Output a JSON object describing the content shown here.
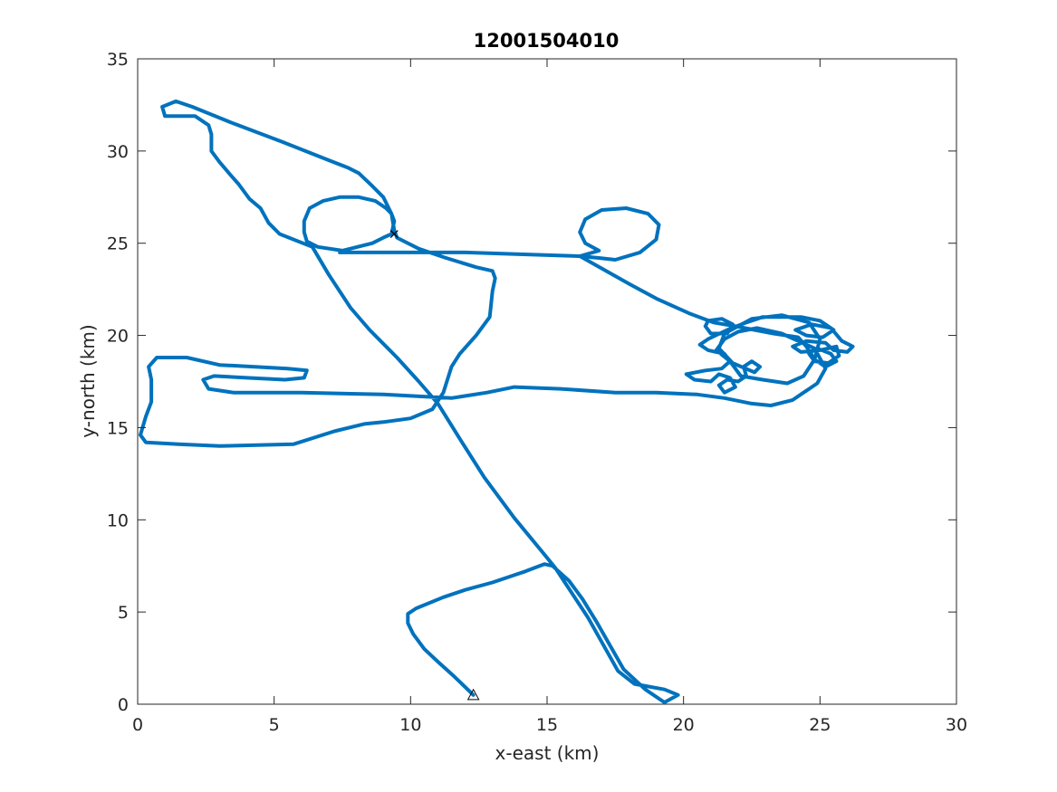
{
  "chart_data": {
    "type": "line",
    "title": "12001504010",
    "xlabel": "x-east (km)",
    "ylabel": "y-north (km)",
    "xlim": [
      0,
      30
    ],
    "ylim": [
      0,
      35
    ],
    "xticks": [
      0,
      5,
      10,
      15,
      20,
      25,
      30
    ],
    "yticks": [
      0,
      5,
      10,
      15,
      20,
      25,
      30,
      35
    ],
    "grid": false,
    "colors": {
      "track": "#0072BD",
      "axes": "#262626"
    },
    "series": [
      {
        "points": [
          [
            12.3,
            0.5
          ],
          [
            11.6,
            1.5
          ],
          [
            11.0,
            2.3
          ],
          [
            10.5,
            3.0
          ],
          [
            10.1,
            3.8
          ],
          [
            9.9,
            4.4
          ],
          [
            9.9,
            4.9
          ],
          [
            10.2,
            5.2
          ],
          [
            11.2,
            5.8
          ],
          [
            12.0,
            6.2
          ],
          [
            13.0,
            6.6
          ],
          [
            14.2,
            7.2
          ],
          [
            14.9,
            7.6
          ],
          [
            15.2,
            7.5
          ],
          [
            15.8,
            6.7
          ],
          [
            16.3,
            5.7
          ],
          [
            16.8,
            4.5
          ],
          [
            17.3,
            3.2
          ],
          [
            17.8,
            1.9
          ],
          [
            18.6,
            0.8
          ],
          [
            19.3,
            0.1
          ],
          [
            19.8,
            0.5
          ],
          [
            19.3,
            0.8
          ],
          [
            18.2,
            1.1
          ],
          [
            17.6,
            1.8
          ],
          [
            16.5,
            4.7
          ],
          [
            15.3,
            7.4
          ],
          [
            14.8,
            8.3
          ],
          [
            13.8,
            10.1
          ],
          [
            12.7,
            12.3
          ],
          [
            11.8,
            14.4
          ],
          [
            11.0,
            16.3
          ],
          [
            10.3,
            17.5
          ],
          [
            9.5,
            18.8
          ],
          [
            8.5,
            20.3
          ],
          [
            7.8,
            21.5
          ],
          [
            7.0,
            23.3
          ],
          [
            6.4,
            24.8
          ],
          [
            5.2,
            25.5
          ],
          [
            4.8,
            26.1
          ],
          [
            4.5,
            26.9
          ],
          [
            4.1,
            27.4
          ],
          [
            3.7,
            28.2
          ],
          [
            3.4,
            28.7
          ],
          [
            3.0,
            29.4
          ],
          [
            2.7,
            30.0
          ],
          [
            2.7,
            30.9
          ],
          [
            2.6,
            31.4
          ],
          [
            2.1,
            31.9
          ],
          [
            1.5,
            31.9
          ],
          [
            1.0,
            31.9
          ],
          [
            0.9,
            32.4
          ],
          [
            1.4,
            32.7
          ],
          [
            2.0,
            32.4
          ],
          [
            3.5,
            31.5
          ],
          [
            5.3,
            30.5
          ],
          [
            7.0,
            29.5
          ],
          [
            7.7,
            29.1
          ],
          [
            8.1,
            28.8
          ],
          [
            8.6,
            28.1
          ],
          [
            9.0,
            27.5
          ],
          [
            9.3,
            26.6
          ],
          [
            9.4,
            26.2
          ],
          [
            9.3,
            25.5
          ],
          [
            9.0,
            25.3
          ],
          [
            8.6,
            25.0
          ],
          [
            7.5,
            24.6
          ],
          [
            6.6,
            24.8
          ],
          [
            6.2,
            25.1
          ],
          [
            6.1,
            25.6
          ],
          [
            6.1,
            26.2
          ],
          [
            6.3,
            26.9
          ],
          [
            6.8,
            27.3
          ],
          [
            7.4,
            27.5
          ],
          [
            8.1,
            27.5
          ],
          [
            8.7,
            27.3
          ],
          [
            9.1,
            26.9
          ],
          [
            9.3,
            26.6
          ],
          [
            9.4,
            25.7
          ],
          [
            9.5,
            25.3
          ],
          [
            10.3,
            24.7
          ],
          [
            11.3,
            24.2
          ],
          [
            12.4,
            23.7
          ],
          [
            13.0,
            23.5
          ],
          [
            13.1,
            23.1
          ],
          [
            13.0,
            22.4
          ],
          [
            12.9,
            21.0
          ],
          [
            12.4,
            20.0
          ],
          [
            11.8,
            19.0
          ],
          [
            11.5,
            18.3
          ],
          [
            11.2,
            16.9
          ],
          [
            10.8,
            16.0
          ],
          [
            10.0,
            15.5
          ],
          [
            9.0,
            15.3
          ],
          [
            8.3,
            15.2
          ],
          [
            7.2,
            14.8
          ],
          [
            5.7,
            14.1
          ],
          [
            3.0,
            14.0
          ],
          [
            1.5,
            14.1
          ],
          [
            0.3,
            14.2
          ],
          [
            0.1,
            14.6
          ],
          [
            0.3,
            15.6
          ],
          [
            0.5,
            16.4
          ],
          [
            0.5,
            17.6
          ],
          [
            0.4,
            18.3
          ],
          [
            0.7,
            18.8
          ],
          [
            1.8,
            18.8
          ],
          [
            3.0,
            18.4
          ],
          [
            4.3,
            18.3
          ],
          [
            5.5,
            18.2
          ],
          [
            6.2,
            18.1
          ],
          [
            6.1,
            17.7
          ],
          [
            5.4,
            17.6
          ],
          [
            4.0,
            17.7
          ],
          [
            2.8,
            17.8
          ],
          [
            2.4,
            17.6
          ],
          [
            2.6,
            17.1
          ],
          [
            3.5,
            16.9
          ],
          [
            6.0,
            16.9
          ],
          [
            9.0,
            16.8
          ],
          [
            11.5,
            16.6
          ],
          [
            12.8,
            16.9
          ],
          [
            13.8,
            17.2
          ],
          [
            15.5,
            17.1
          ],
          [
            17.5,
            16.9
          ],
          [
            19.0,
            16.9
          ],
          [
            20.5,
            16.8
          ],
          [
            21.5,
            16.6
          ],
          [
            22.5,
            16.3
          ],
          [
            23.2,
            16.2
          ],
          [
            24.0,
            16.5
          ],
          [
            24.9,
            17.4
          ],
          [
            25.2,
            18.2
          ],
          [
            24.8,
            19.3
          ],
          [
            23.6,
            20.1
          ],
          [
            22.7,
            20.4
          ],
          [
            22.0,
            20.2
          ],
          [
            21.5,
            19.8
          ],
          [
            21.2,
            19.2
          ],
          [
            21.7,
            18.6
          ],
          [
            22.1,
            17.8
          ],
          [
            22.9,
            17.6
          ],
          [
            23.8,
            17.4
          ],
          [
            24.4,
            17.8
          ],
          [
            24.8,
            18.7
          ],
          [
            25.0,
            19.8
          ],
          [
            24.6,
            20.7
          ],
          [
            23.6,
            21.1
          ],
          [
            22.5,
            20.9
          ],
          [
            21.5,
            20.1
          ],
          [
            21.3,
            19.3
          ],
          [
            21.8,
            18.5
          ],
          [
            22.6,
            18.0
          ],
          [
            22.8,
            18.3
          ],
          [
            22.5,
            18.6
          ],
          [
            22.2,
            18.3
          ],
          [
            22.3,
            17.8
          ],
          [
            22.0,
            17.5
          ],
          [
            21.6,
            17.6
          ],
          [
            21.3,
            17.3
          ],
          [
            21.5,
            16.9
          ],
          [
            21.9,
            17.2
          ],
          [
            21.7,
            17.7
          ],
          [
            21.3,
            17.9
          ],
          [
            21.0,
            17.5
          ],
          [
            20.4,
            17.6
          ],
          [
            20.1,
            17.9
          ],
          [
            20.8,
            18.1
          ],
          [
            21.4,
            18.2
          ],
          [
            21.7,
            18.6
          ],
          [
            21.5,
            19.0
          ],
          [
            20.9,
            19.2
          ],
          [
            20.6,
            19.5
          ],
          [
            20.9,
            19.8
          ],
          [
            21.6,
            20.3
          ],
          [
            22.3,
            20.7
          ],
          [
            22.9,
            21.0
          ],
          [
            24.3,
            21.0
          ],
          [
            25.0,
            20.8
          ],
          [
            25.5,
            20.3
          ],
          [
            25.1,
            19.9
          ],
          [
            24.5,
            20.0
          ],
          [
            24.1,
            20.3
          ],
          [
            24.7,
            20.6
          ],
          [
            25.4,
            20.4
          ],
          [
            25.8,
            19.7
          ],
          [
            26.2,
            19.4
          ],
          [
            26.0,
            19.1
          ],
          [
            25.5,
            19.2
          ],
          [
            25.2,
            19.6
          ],
          [
            24.5,
            19.7
          ],
          [
            24.0,
            19.4
          ],
          [
            24.3,
            19.1
          ],
          [
            25.0,
            19.2
          ],
          [
            25.6,
            19.4
          ],
          [
            25.7,
            18.9
          ],
          [
            25.3,
            18.5
          ],
          [
            24.8,
            18.6
          ],
          [
            24.6,
            19.0
          ],
          [
            24.9,
            19.3
          ],
          [
            25.4,
            19.0
          ],
          [
            25.6,
            18.6
          ],
          [
            25.2,
            18.3
          ],
          [
            24.8,
            18.7
          ],
          [
            24.5,
            19.4
          ],
          [
            24.2,
            19.9
          ],
          [
            23.3,
            20.1
          ],
          [
            22.6,
            20.3
          ],
          [
            21.9,
            20.5
          ],
          [
            21.1,
            20.7
          ],
          [
            20.2,
            21.2
          ],
          [
            19.0,
            22.0
          ],
          [
            18.0,
            22.8
          ],
          [
            16.2,
            24.3
          ],
          [
            14.0,
            24.4
          ],
          [
            12.0,
            24.5
          ],
          [
            10.5,
            24.5
          ],
          [
            8.5,
            24.5
          ],
          [
            7.4,
            24.5
          ]
        ]
      },
      {
        "points": [
          [
            16.2,
            24.3
          ],
          [
            16.9,
            24.6
          ],
          [
            16.4,
            25.0
          ],
          [
            16.2,
            25.6
          ],
          [
            16.4,
            26.3
          ],
          [
            17.0,
            26.8
          ],
          [
            17.9,
            26.9
          ],
          [
            18.7,
            26.6
          ],
          [
            19.1,
            26.0
          ],
          [
            19.0,
            25.2
          ],
          [
            18.4,
            24.5
          ],
          [
            17.5,
            24.1
          ],
          [
            16.9,
            24.2
          ],
          [
            16.2,
            24.3
          ]
        ]
      },
      {
        "points": [
          [
            20.8,
            20.5
          ],
          [
            20.9,
            20.8
          ],
          [
            21.4,
            20.9
          ],
          [
            21.8,
            20.6
          ],
          [
            21.6,
            20.1
          ],
          [
            21.0,
            20.1
          ],
          [
            20.8,
            20.5
          ]
        ]
      }
    ],
    "markers": [
      {
        "symbol": "triangle",
        "x": 12.3,
        "y": 0.5
      },
      {
        "symbol": "cross",
        "x": 9.4,
        "y": 25.5
      }
    ]
  }
}
